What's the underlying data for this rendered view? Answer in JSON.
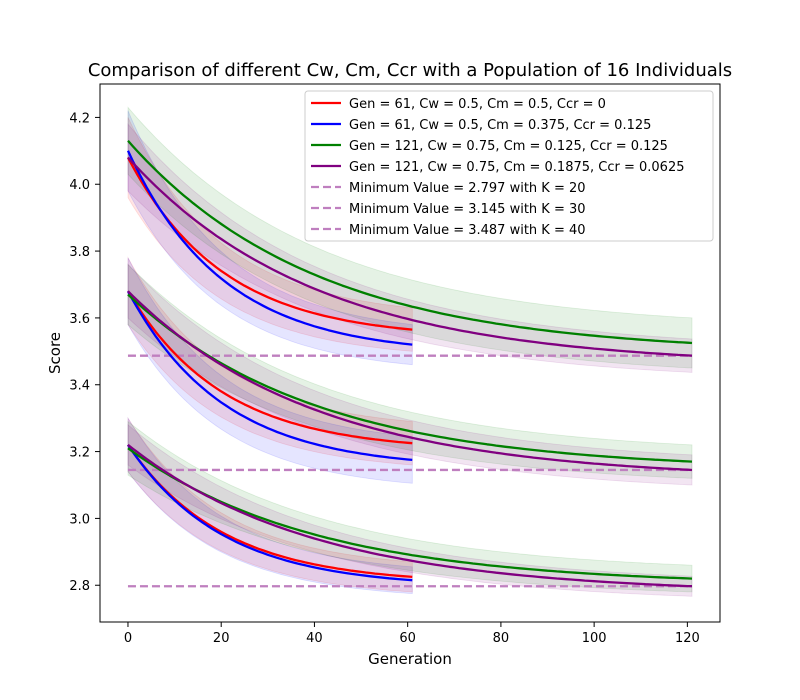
{
  "chart_data": {
    "type": "line",
    "title": "Comparison of different Cw, Cm, Ccr with a Population of 16 Individuals",
    "xlabel": "Generation",
    "ylabel": "Score",
    "xlim": [
      -6,
      127
    ],
    "ylim": [
      2.69,
      4.3
    ],
    "xticks": [
      0,
      20,
      40,
      60,
      80,
      100,
      120
    ],
    "yticks": [
      2.8,
      3.0,
      3.2,
      3.4,
      3.6,
      3.8,
      4.0,
      4.2
    ],
    "ytick_labels": [
      "2.8",
      "3.0",
      "3.2",
      "3.4",
      "3.6",
      "3.8",
      "4.0",
      "4.2"
    ],
    "grid": false,
    "legend_position": "upper-right",
    "colors": {
      "red": "#ff0000",
      "blue": "#0000ff",
      "green": "#008000",
      "purple": "#800080",
      "min": "#bf7fbf"
    },
    "series": [
      {
        "name": "Gen = 61, Cw = 0.5, Cm = 0.5, Ccr = 0",
        "color": "#ff0000",
        "gen": 61,
        "groups": [
          {
            "start": 4.08,
            "end": 3.565,
            "spread_start": 0.12,
            "spread_end": 0.065
          },
          {
            "start": 3.68,
            "end": 3.225,
            "spread_start": 0.1,
            "spread_end": 0.065
          },
          {
            "start": 3.22,
            "end": 2.825,
            "spread_start": 0.08,
            "spread_end": 0.045
          }
        ]
      },
      {
        "name": "Gen = 61, Cw = 0.5, Cm = 0.375, Ccr = 0.125",
        "color": "#0000ff",
        "gen": 61,
        "groups": [
          {
            "start": 4.1,
            "end": 3.52,
            "spread_start": 0.12,
            "spread_end": 0.06
          },
          {
            "start": 3.68,
            "end": 3.175,
            "spread_start": 0.1,
            "spread_end": 0.07
          },
          {
            "start": 3.22,
            "end": 2.815,
            "spread_start": 0.08,
            "spread_end": 0.04
          }
        ]
      },
      {
        "name": "Gen = 121, Cw = 0.75, Cm = 0.125, Ccr = 0.125",
        "color": "#008000",
        "gen": 121,
        "groups": [
          {
            "start": 4.13,
            "end": 3.525,
            "spread_start": 0.1,
            "spread_end": 0.075
          },
          {
            "start": 3.67,
            "end": 3.17,
            "spread_start": 0.09,
            "spread_end": 0.05
          },
          {
            "start": 3.21,
            "end": 2.82,
            "spread_start": 0.08,
            "spread_end": 0.04
          }
        ]
      },
      {
        "name": "Gen = 121, Cw = 0.75, Cm = 0.1875, Ccr = 0.0625",
        "color": "#800080",
        "gen": 121,
        "groups": [
          {
            "start": 4.08,
            "end": 3.487,
            "spread_start": 0.1,
            "spread_end": 0.05
          },
          {
            "start": 3.68,
            "end": 3.145,
            "spread_start": 0.08,
            "spread_end": 0.045
          },
          {
            "start": 3.22,
            "end": 2.797,
            "spread_start": 0.06,
            "spread_end": 0.03
          }
        ]
      }
    ],
    "min_lines": [
      {
        "label": "Minimum Value = 2.797 with K = 20",
        "value": 2.797,
        "color": "#bf7fbf"
      },
      {
        "label": "Minimum Value = 3.145 with K = 30",
        "value": 3.145,
        "color": "#bf7fbf"
      },
      {
        "label": "Minimum Value = 3.487 with K = 40",
        "value": 3.487,
        "color": "#bf7fbf"
      }
    ]
  }
}
